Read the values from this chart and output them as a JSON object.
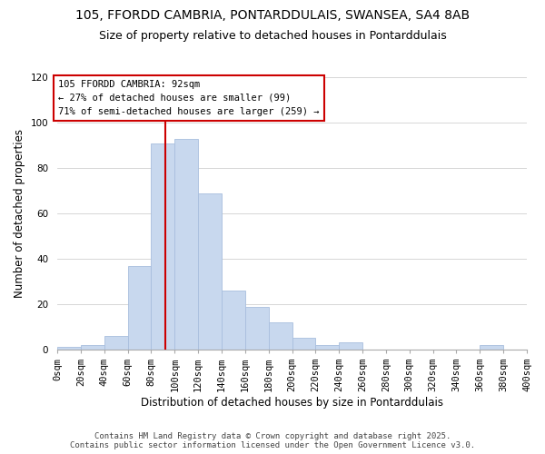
{
  "title_line1": "105, FFORDD CAMBRIA, PONTARDDULAIS, SWANSEA, SA4 8AB",
  "title_line2": "Size of property relative to detached houses in Pontarddulais",
  "xlabel": "Distribution of detached houses by size in Pontarddulais",
  "ylabel": "Number of detached properties",
  "bar_color": "#c8d8ee",
  "bar_edge_color": "#a8bede",
  "background_color": "#ffffff",
  "grid_color": "#d0d0d0",
  "vline_x": 92,
  "vline_color": "#cc0000",
  "bin_edges": [
    0,
    20,
    40,
    60,
    80,
    100,
    120,
    140,
    160,
    180,
    200,
    220,
    240,
    260,
    280,
    300,
    320,
    340,
    360,
    380,
    400
  ],
  "bin_counts": [
    1,
    2,
    6,
    37,
    91,
    93,
    69,
    26,
    19,
    12,
    5,
    2,
    3,
    0,
    0,
    0,
    0,
    0,
    2,
    0
  ],
  "ylim": [
    0,
    120
  ],
  "yticks": [
    0,
    20,
    40,
    60,
    80,
    100,
    120
  ],
  "annotation_title": "105 FFORDD CAMBRIA: 92sqm",
  "annotation_line2": "← 27% of detached houses are smaller (99)",
  "annotation_line3": "71% of semi-detached houses are larger (259) →",
  "annotation_box_color": "#ffffff",
  "annotation_box_edge": "#cc0000",
  "footer_line1": "Contains HM Land Registry data © Crown copyright and database right 2025.",
  "footer_line2": "Contains public sector information licensed under the Open Government Licence v3.0.",
  "title_fontsize": 10,
  "subtitle_fontsize": 9,
  "axis_label_fontsize": 8.5,
  "tick_fontsize": 7.5,
  "annotation_fontsize": 7.5,
  "footer_fontsize": 6.5
}
